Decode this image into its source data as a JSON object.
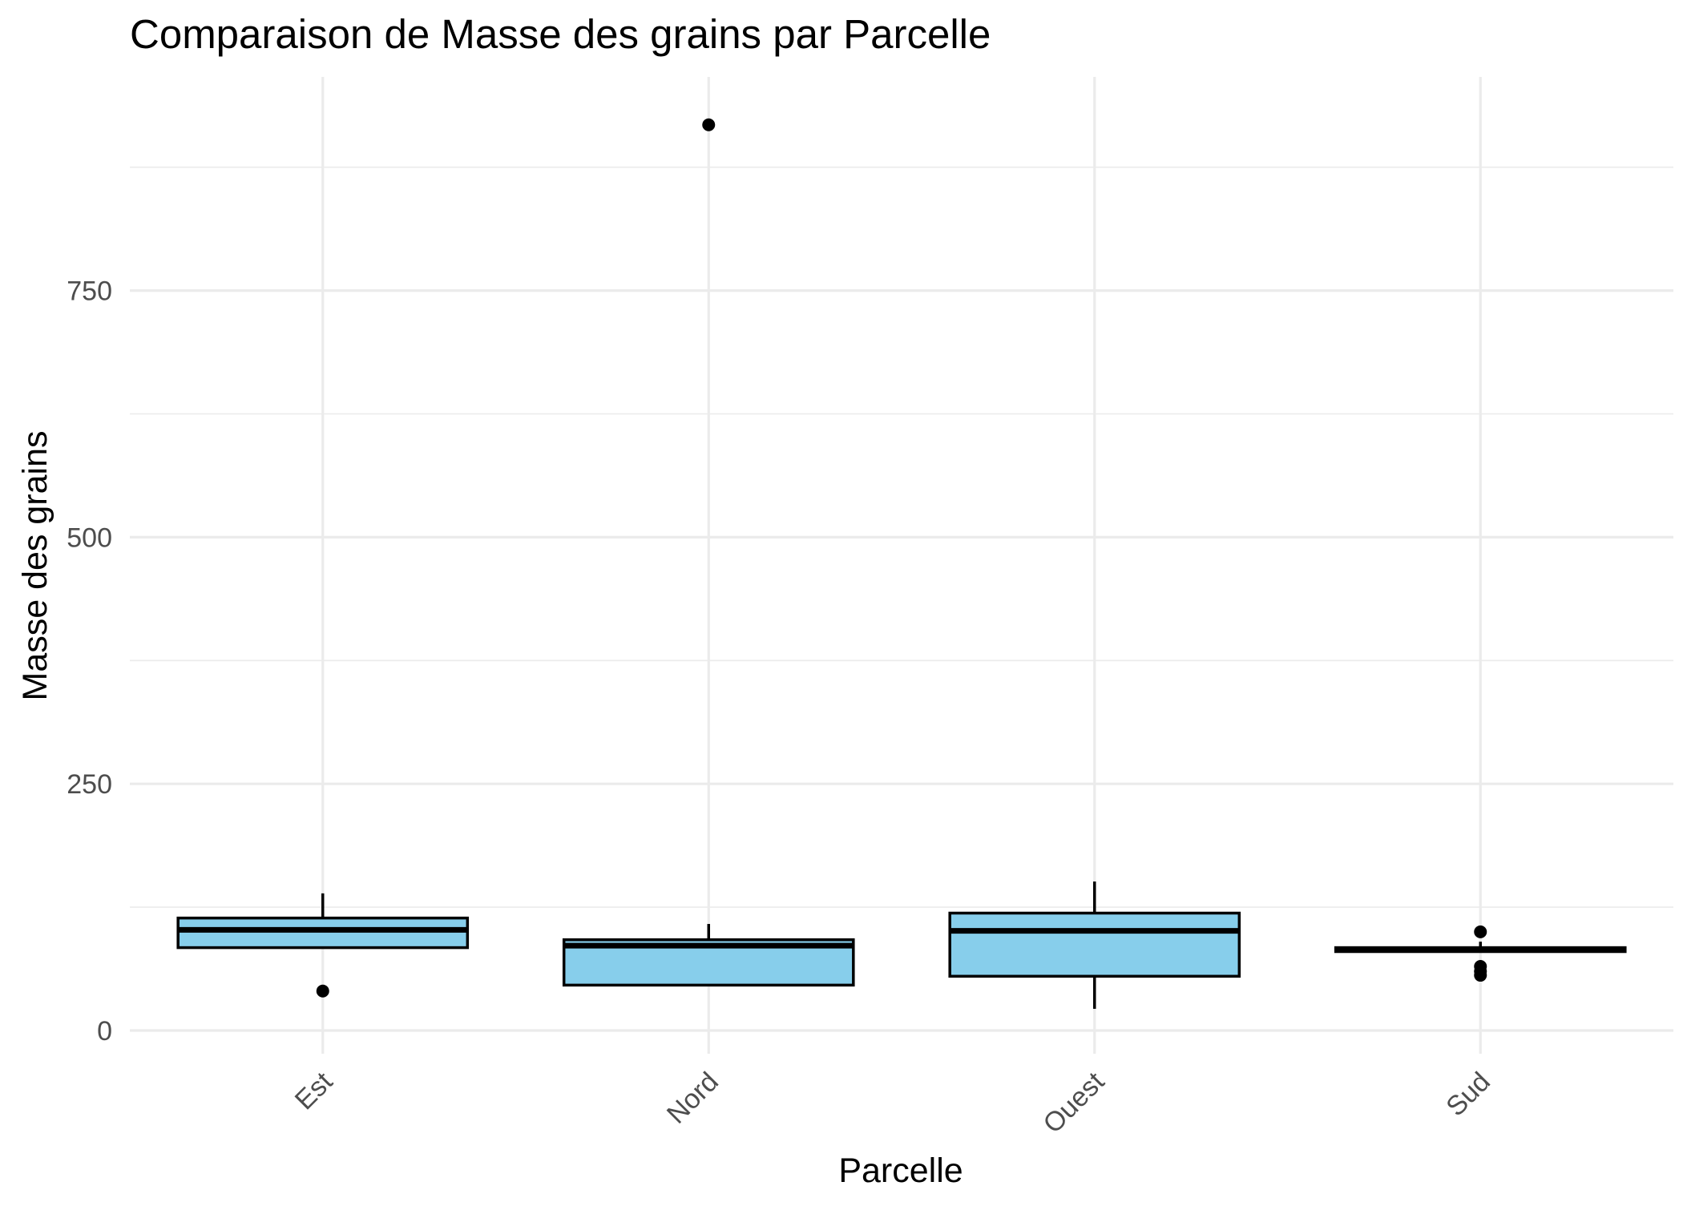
{
  "chart_data": {
    "type": "boxplot",
    "title": "Comparaison de Masse des grains par Parcelle",
    "xlabel": "Parcelle",
    "ylabel": "Masse des grains",
    "categories": [
      "Est",
      "Nord",
      "Ouest",
      "Sud"
    ],
    "yticks": [
      0,
      250,
      500,
      750
    ],
    "ytick_labels": [
      "0",
      "250",
      "500",
      "750"
    ],
    "ylim": [
      -40,
      960
    ],
    "grid": true,
    "fill_color": "#87CEEB",
    "line_color": "#000000",
    "boxes": [
      {
        "category": "Est",
        "whisker_low": 84,
        "q1": 84,
        "median": 102,
        "q3": 114,
        "whisker_high": 139,
        "outliers": [
          40
        ]
      },
      {
        "category": "Nord",
        "whisker_low": 45,
        "q1": 46,
        "median": 86,
        "q3": 92,
        "whisker_high": 108,
        "outliers": [
          918
        ]
      },
      {
        "category": "Ouest",
        "whisker_low": 22,
        "q1": 55,
        "median": 101,
        "q3": 119,
        "whisker_high": 151,
        "outliers": []
      },
      {
        "category": "Sud",
        "whisker_low": 80,
        "q1": 80,
        "median": 82,
        "q3": 84,
        "whisker_high": 90,
        "outliers": [
          100,
          65,
          60,
          56
        ]
      }
    ]
  }
}
